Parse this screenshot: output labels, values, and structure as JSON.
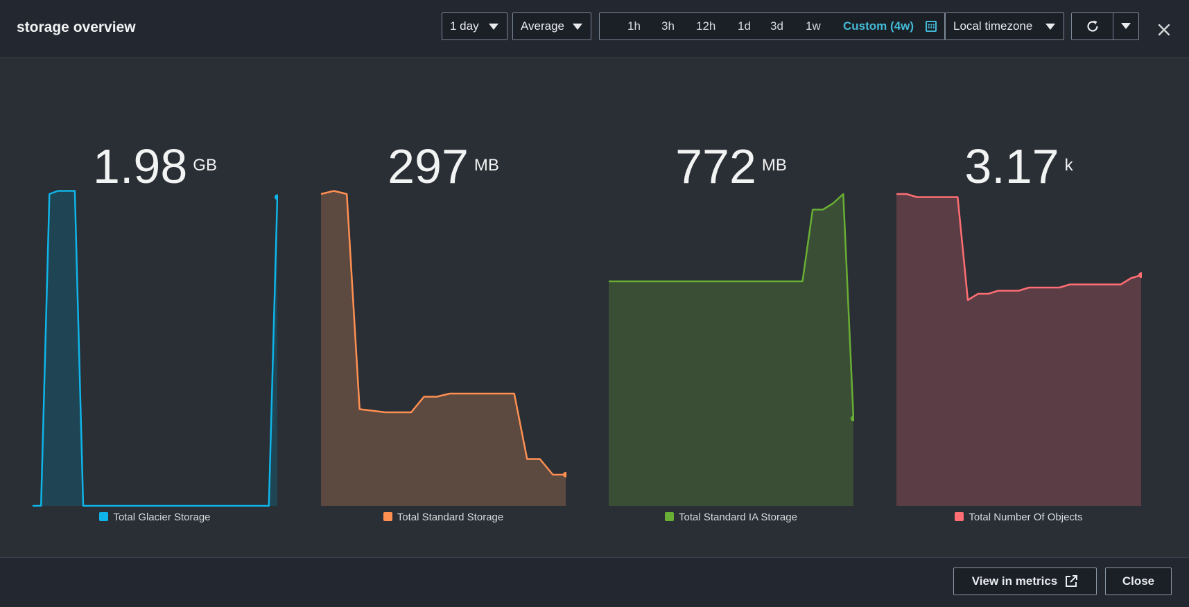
{
  "header": {
    "title": "storage overview",
    "period_select": "1 day",
    "statistic_select": "Average",
    "ranges": [
      "1h",
      "3h",
      "12h",
      "1d",
      "3d",
      "1w"
    ],
    "custom_range": "Custom (4w)",
    "timezone_select": "Local timezone"
  },
  "widgets": [
    {
      "value": "1.98",
      "unit": "GB",
      "legend": "Total Glacier Storage",
      "color": "#0fb5e8",
      "fill": "#1f4555"
    },
    {
      "value": "297",
      "unit": "MB",
      "legend": "Total Standard Storage",
      "color": "#ff9052",
      "fill": "#5c4940"
    },
    {
      "value": "772",
      "unit": "MB",
      "legend": "Total Standard IA Storage",
      "color": "#69ae34",
      "fill": "#3a4e36"
    },
    {
      "value": "3.17",
      "unit": "k",
      "legend": "Total Number Of Objects",
      "color": "#fe6e73",
      "fill": "#5a3d45"
    }
  ],
  "chart_data": [
    {
      "type": "area",
      "series": [
        {
          "name": "Total Glacier Storage",
          "values": [
            0,
            0,
            1,
            1.01,
            1.01,
            1.01,
            0,
            0,
            0,
            0,
            0,
            0,
            0,
            0,
            0,
            0,
            0,
            0,
            0,
            0,
            0,
            0,
            0,
            0,
            0,
            0,
            0,
            0,
            0,
            0.99
          ]
        }
      ]
    },
    {
      "type": "area",
      "series": [
        {
          "name": "Total Standard Storage",
          "values": [
            1,
            1.01,
            1,
            0.31,
            0.305,
            0.3,
            0.3,
            0.3,
            0.35,
            0.35,
            0.36,
            0.36,
            0.36,
            0.36,
            0.36,
            0.36,
            0.15,
            0.15,
            0.1,
            0.1
          ]
        }
      ]
    },
    {
      "type": "area",
      "series": [
        {
          "name": "Total Standard IA Storage",
          "values": [
            0.72,
            0.72,
            0.72,
            0.72,
            0.72,
            0.72,
            0.72,
            0.72,
            0.72,
            0.72,
            0.72,
            0.72,
            0.72,
            0.72,
            0.72,
            0.72,
            0.72,
            0.72,
            0.72,
            0.72,
            0.95,
            0.95,
            0.97,
            1.0,
            0.28
          ]
        }
      ]
    },
    {
      "type": "area",
      "series": [
        {
          "name": "Total Number Of Objects",
          "values": [
            1,
            1,
            0.99,
            0.99,
            0.99,
            0.99,
            0.99,
            0.66,
            0.68,
            0.68,
            0.69,
            0.69,
            0.69,
            0.7,
            0.7,
            0.7,
            0.7,
            0.71,
            0.71,
            0.71,
            0.71,
            0.71,
            0.71,
            0.73,
            0.74
          ]
        }
      ]
    }
  ],
  "footer": {
    "metrics_label": "View in metrics",
    "close_label": "Close"
  }
}
